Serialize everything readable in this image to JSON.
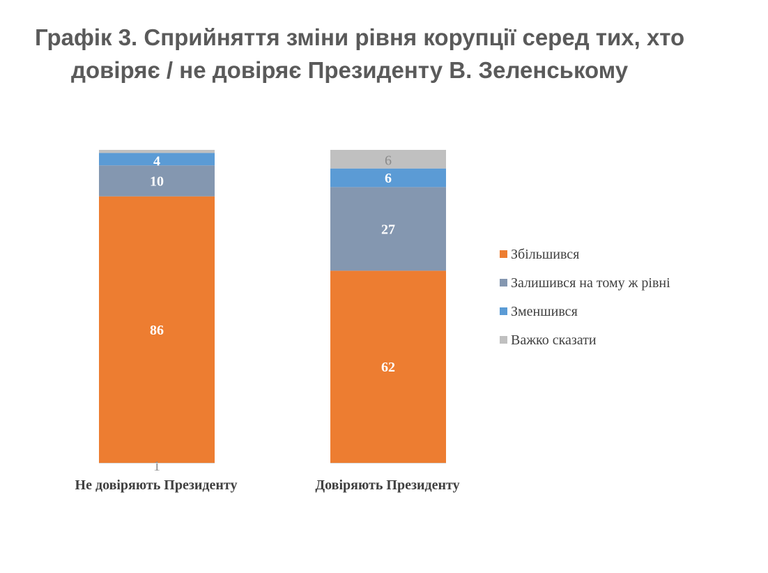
{
  "title": {
    "line1": "Графік 3. Сприйняття зміни рівня корупції серед тих, хто",
    "line2": "довіряє / не довіряє Президенту В. Зеленському"
  },
  "chart_data": {
    "type": "bar",
    "stacked": true,
    "title": "Графік 3. Сприйняття зміни рівня корупції серед тих, хто довіряє / не довіряє Президенту В. Зеленському",
    "categories": [
      "Не довіряють Президенту",
      "Довіряють Президенту"
    ],
    "series": [
      {
        "name": "Збільшився",
        "values": [
          86,
          62
        ],
        "color": "#ed7d31"
      },
      {
        "name": "Залишився на тому ж рівні",
        "values": [
          10,
          27
        ],
        "color": "#8497b0"
      },
      {
        "name": "Зменшився",
        "values": [
          4,
          6
        ],
        "color": "#5b9bd5"
      },
      {
        "name": "Важко сказати",
        "values": [
          1,
          6
        ],
        "color": "#c0c0c0"
      }
    ],
    "legend_position": "right",
    "xlabel": "",
    "ylabel": "",
    "grid": false
  }
}
